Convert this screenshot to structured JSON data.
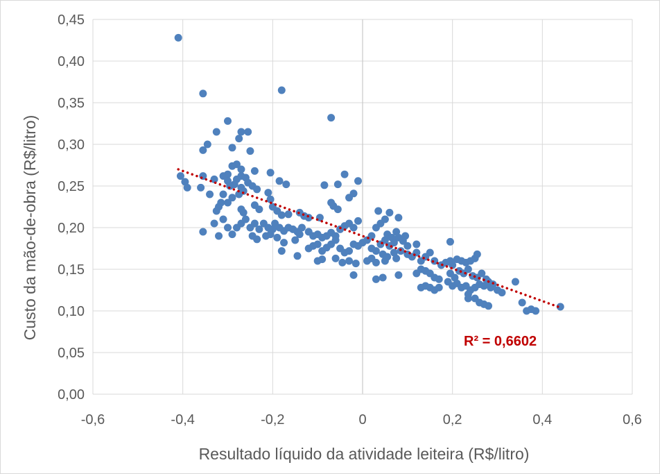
{
  "chart_data": {
    "type": "scatter",
    "title": "",
    "xlabel": "Resultado líquido da atividade leiteira (R$/litro)",
    "ylabel": "Custo da mão-de-obra (R$/litro)",
    "xlim": [
      -0.6,
      0.6
    ],
    "ylim": [
      0,
      0.45
    ],
    "xticks": [
      -0.6,
      -0.4,
      -0.2,
      0,
      0.2,
      0.4,
      0.6
    ],
    "xtick_labels": [
      "-0,6",
      "-0,4",
      "-0,2",
      "0",
      "0,2",
      "0,4",
      "0,6"
    ],
    "yticks": [
      0,
      0.05,
      0.1,
      0.15,
      0.2,
      0.25,
      0.3,
      0.35,
      0.4,
      0.45
    ],
    "ytick_labels": [
      "0,00",
      "0,05",
      "0,10",
      "0,15",
      "0,20",
      "0,25",
      "0,30",
      "0,35",
      "0,40",
      "0,45"
    ],
    "grid": true,
    "legend": "none",
    "point_color": "#4f81bd",
    "trendline": {
      "type": "linear",
      "style": "dotted",
      "color": "#c00000",
      "x_range": [
        -0.41,
        0.44
      ],
      "y_at_start": 0.27,
      "y_at_end": 0.104,
      "r2_label": "R² = 0,6602"
    },
    "series": [
      {
        "points": [
          [
            -0.41,
            0.428
          ],
          [
            -0.355,
            0.361
          ],
          [
            -0.18,
            0.365
          ],
          [
            -0.07,
            0.332
          ],
          [
            -0.3,
            0.328
          ],
          [
            -0.325,
            0.315
          ],
          [
            -0.27,
            0.315
          ],
          [
            -0.255,
            0.315
          ],
          [
            -0.275,
            0.307
          ],
          [
            -0.345,
            0.3
          ],
          [
            -0.355,
            0.293
          ],
          [
            -0.29,
            0.296
          ],
          [
            -0.25,
            0.292
          ],
          [
            -0.28,
            0.276
          ],
          [
            -0.29,
            0.274
          ],
          [
            -0.27,
            0.27
          ],
          [
            -0.24,
            0.268
          ],
          [
            -0.205,
            0.266
          ],
          [
            -0.04,
            0.264
          ],
          [
            -0.01,
            0.256
          ],
          [
            -0.3,
            0.264
          ],
          [
            -0.31,
            0.262
          ],
          [
            -0.33,
            0.258
          ],
          [
            -0.27,
            0.262
          ],
          [
            -0.26,
            0.26
          ],
          [
            -0.28,
            0.258
          ],
          [
            -0.3,
            0.256
          ],
          [
            -0.285,
            0.252
          ],
          [
            -0.295,
            0.25
          ],
          [
            -0.27,
            0.248
          ],
          [
            -0.265,
            0.244
          ],
          [
            -0.275,
            0.24
          ],
          [
            -0.31,
            0.24
          ],
          [
            -0.29,
            0.236
          ],
          [
            -0.255,
            0.254
          ],
          [
            -0.245,
            0.25
          ],
          [
            -0.235,
            0.246
          ],
          [
            -0.21,
            0.242
          ],
          [
            -0.185,
            0.256
          ],
          [
            -0.17,
            0.252
          ],
          [
            -0.085,
            0.251
          ],
          [
            -0.055,
            0.252
          ],
          [
            -0.3,
            0.23
          ],
          [
            -0.315,
            0.23
          ],
          [
            -0.32,
            0.225
          ],
          [
            -0.27,
            0.222
          ],
          [
            -0.265,
            0.218
          ],
          [
            -0.24,
            0.227
          ],
          [
            -0.23,
            0.222
          ],
          [
            -0.205,
            0.234
          ],
          [
            -0.2,
            0.225
          ],
          [
            -0.19,
            0.22
          ],
          [
            -0.18,
            0.215
          ],
          [
            -0.165,
            0.216
          ],
          [
            -0.14,
            0.218
          ],
          [
            -0.13,
            0.214
          ],
          [
            -0.12,
            0.212
          ],
          [
            -0.095,
            0.212
          ],
          [
            -0.07,
            0.23
          ],
          [
            -0.065,
            0.226
          ],
          [
            -0.03,
            0.236
          ],
          [
            -0.02,
            0.241
          ],
          [
            -0.055,
            0.222
          ],
          [
            -0.405,
            0.262
          ],
          [
            -0.395,
            0.255
          ],
          [
            -0.39,
            0.248
          ],
          [
            -0.355,
            0.262
          ],
          [
            -0.36,
            0.248
          ],
          [
            -0.34,
            0.24
          ],
          [
            -0.325,
            0.22
          ],
          [
            -0.31,
            0.21
          ],
          [
            -0.3,
            0.2
          ],
          [
            -0.33,
            0.205
          ],
          [
            -0.355,
            0.195
          ],
          [
            -0.32,
            0.19
          ],
          [
            -0.29,
            0.192
          ],
          [
            -0.28,
            0.2
          ],
          [
            -0.27,
            0.205
          ],
          [
            -0.26,
            0.21
          ],
          [
            -0.25,
            0.2
          ],
          [
            -0.24,
            0.205
          ],
          [
            -0.23,
            0.198
          ],
          [
            -0.22,
            0.205
          ],
          [
            -0.21,
            0.2
          ],
          [
            -0.2,
            0.198
          ],
          [
            -0.195,
            0.205
          ],
          [
            -0.185,
            0.2
          ],
          [
            -0.175,
            0.196
          ],
          [
            -0.165,
            0.2
          ],
          [
            -0.155,
            0.198
          ],
          [
            -0.145,
            0.195
          ],
          [
            -0.135,
            0.2
          ],
          [
            -0.245,
            0.19
          ],
          [
            -0.235,
            0.186
          ],
          [
            -0.215,
            0.19
          ],
          [
            -0.205,
            0.192
          ],
          [
            -0.19,
            0.188
          ],
          [
            -0.175,
            0.182
          ],
          [
            -0.15,
            0.185
          ],
          [
            -0.14,
            0.192
          ],
          [
            -0.12,
            0.195
          ],
          [
            -0.11,
            0.19
          ],
          [
            -0.1,
            0.192
          ],
          [
            -0.09,
            0.188
          ],
          [
            -0.08,
            0.19
          ],
          [
            -0.07,
            0.194
          ],
          [
            -0.06,
            0.19
          ],
          [
            -0.05,
            0.198
          ],
          [
            -0.04,
            0.202
          ],
          [
            -0.03,
            0.205
          ],
          [
            -0.02,
            0.2
          ],
          [
            -0.01,
            0.208
          ],
          [
            -0.12,
            0.175
          ],
          [
            -0.11,
            0.178
          ],
          [
            -0.1,
            0.18
          ],
          [
            -0.09,
            0.172
          ],
          [
            -0.08,
            0.176
          ],
          [
            -0.07,
            0.18
          ],
          [
            -0.06,
            0.185
          ],
          [
            -0.05,
            0.175
          ],
          [
            -0.04,
            0.17
          ],
          [
            -0.03,
            0.172
          ],
          [
            -0.02,
            0.18
          ],
          [
            -0.01,
            0.178
          ],
          [
            0.0,
            0.182
          ],
          [
            0.01,
            0.185
          ],
          [
            0.02,
            0.19
          ],
          [
            -0.18,
            0.172
          ],
          [
            -0.145,
            0.166
          ],
          [
            -0.1,
            0.16
          ],
          [
            -0.09,
            0.162
          ],
          [
            -0.06,
            0.163
          ],
          [
            -0.045,
            0.158
          ],
          [
            -0.03,
            0.16
          ],
          [
            -0.015,
            0.157
          ],
          [
            0.01,
            0.16
          ],
          [
            0.02,
            0.163
          ],
          [
            -0.02,
            0.143
          ],
          [
            0.03,
            0.2
          ],
          [
            0.04,
            0.205
          ],
          [
            0.05,
            0.21
          ],
          [
            0.035,
            0.22
          ],
          [
            0.06,
            0.218
          ],
          [
            0.08,
            0.212
          ],
          [
            0.02,
            0.175
          ],
          [
            0.03,
            0.172
          ],
          [
            0.04,
            0.18
          ],
          [
            0.05,
            0.185
          ],
          [
            0.06,
            0.178
          ],
          [
            0.07,
            0.182
          ],
          [
            0.08,
            0.188
          ],
          [
            0.09,
            0.184
          ],
          [
            0.1,
            0.178
          ],
          [
            0.055,
            0.192
          ],
          [
            0.065,
            0.188
          ],
          [
            0.075,
            0.195
          ],
          [
            0.045,
            0.168
          ],
          [
            0.055,
            0.165
          ],
          [
            0.07,
            0.17
          ],
          [
            0.085,
            0.172
          ],
          [
            0.1,
            0.168
          ],
          [
            0.11,
            0.165
          ],
          [
            0.12,
            0.17
          ],
          [
            0.13,
            0.16
          ],
          [
            0.14,
            0.165
          ],
          [
            0.15,
            0.17
          ],
          [
            0.16,
            0.16
          ],
          [
            0.12,
            0.18
          ],
          [
            0.095,
            0.19
          ],
          [
            0.03,
            0.158
          ],
          [
            0.05,
            0.16
          ],
          [
            0.075,
            0.163
          ],
          [
            0.03,
            0.138
          ],
          [
            0.045,
            0.14
          ],
          [
            0.08,
            0.143
          ],
          [
            0.12,
            0.145
          ],
          [
            0.13,
            0.15
          ],
          [
            0.14,
            0.148
          ],
          [
            0.15,
            0.145
          ],
          [
            0.16,
            0.14
          ],
          [
            0.17,
            0.138
          ],
          [
            0.175,
            0.155
          ],
          [
            0.185,
            0.158
          ],
          [
            0.195,
            0.16
          ],
          [
            0.2,
            0.155
          ],
          [
            0.21,
            0.162
          ],
          [
            0.22,
            0.16
          ],
          [
            0.23,
            0.158
          ],
          [
            0.24,
            0.16
          ],
          [
            0.25,
            0.163
          ],
          [
            0.255,
            0.168
          ],
          [
            0.195,
            0.183
          ],
          [
            0.195,
            0.145
          ],
          [
            0.205,
            0.14
          ],
          [
            0.215,
            0.148
          ],
          [
            0.225,
            0.145
          ],
          [
            0.235,
            0.15
          ],
          [
            0.245,
            0.142
          ],
          [
            0.255,
            0.14
          ],
          [
            0.265,
            0.145
          ],
          [
            0.275,
            0.138
          ],
          [
            0.28,
            0.135
          ],
          [
            0.19,
            0.135
          ],
          [
            0.2,
            0.13
          ],
          [
            0.21,
            0.133
          ],
          [
            0.22,
            0.128
          ],
          [
            0.23,
            0.13
          ],
          [
            0.24,
            0.125
          ],
          [
            0.25,
            0.128
          ],
          [
            0.26,
            0.132
          ],
          [
            0.27,
            0.13
          ],
          [
            0.285,
            0.128
          ],
          [
            0.29,
            0.132
          ],
          [
            0.3,
            0.125
          ],
          [
            0.31,
            0.122
          ],
          [
            0.34,
            0.135
          ],
          [
            0.14,
            0.13
          ],
          [
            0.15,
            0.128
          ],
          [
            0.16,
            0.125
          ],
          [
            0.17,
            0.128
          ],
          [
            0.13,
            0.128
          ],
          [
            0.235,
            0.12
          ],
          [
            0.25,
            0.115
          ],
          [
            0.26,
            0.11
          ],
          [
            0.27,
            0.108
          ],
          [
            0.28,
            0.106
          ],
          [
            0.235,
            0.115
          ],
          [
            0.355,
            0.11
          ],
          [
            0.365,
            0.1
          ],
          [
            0.375,
            0.102
          ],
          [
            0.385,
            0.1
          ],
          [
            0.44,
            0.105
          ]
        ]
      }
    ]
  }
}
